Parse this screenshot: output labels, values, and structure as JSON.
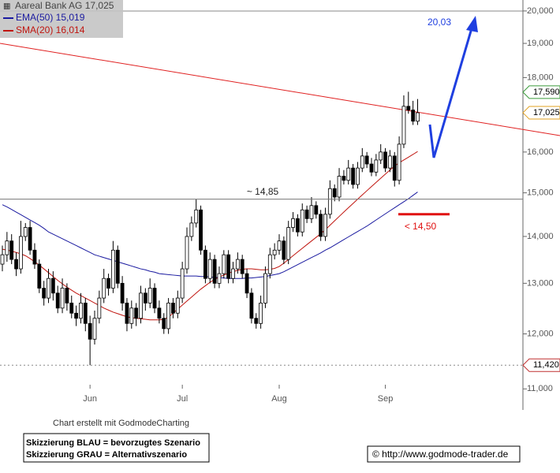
{
  "chart_data": {
    "type": "candlestick",
    "title": "Aareal Bank AG 17,025",
    "log": true,
    "ylim": [
      10.64,
      20.35
    ],
    "yticks": [
      {
        "value": 20,
        "label": "20,000"
      },
      {
        "value": 19,
        "label": "19,000"
      },
      {
        "value": 18,
        "label": "18,000"
      },
      {
        "value": 17,
        "label": "17,000"
      },
      {
        "value": 16,
        "label": "16,000"
      },
      {
        "value": 15,
        "label": "15,000"
      },
      {
        "value": 14,
        "label": "14,000"
      },
      {
        "value": 13,
        "label": "13,000"
      },
      {
        "value": 12,
        "label": "12,000"
      },
      {
        "value": 11,
        "label": "11,000"
      }
    ],
    "categories": [
      null,
      null,
      null,
      null,
      null,
      null,
      null,
      null,
      null,
      null,
      null,
      null,
      null,
      null,
      null,
      null,
      null,
      null,
      null,
      "Jun",
      null,
      null,
      null,
      null,
      null,
      null,
      null,
      null,
      null,
      null,
      null,
      null,
      null,
      null,
      null,
      null,
      null,
      null,
      null,
      "Jul",
      null,
      null,
      null,
      null,
      null,
      null,
      null,
      null,
      null,
      null,
      null,
      null,
      null,
      null,
      null,
      null,
      null,
      null,
      null,
      null,
      "Aug",
      null,
      null,
      null,
      null,
      null,
      null,
      null,
      null,
      null,
      null,
      null,
      null,
      null,
      null,
      null,
      null,
      null,
      null,
      null,
      null,
      null,
      null,
      "Sep",
      null,
      null,
      null,
      null,
      null,
      null,
      null
    ],
    "ohlc": {
      "open": [
        13.4,
        13.6,
        13.9,
        13.5,
        13.3,
        14.0,
        14.2,
        13.7,
        13.4,
        12.9,
        12.7,
        13.1,
        12.8,
        12.5,
        12.9,
        12.6,
        12.4,
        12.3,
        12.6,
        12.2,
        11.9,
        12.3,
        12.7,
        13.1,
        12.9,
        13.7,
        13.0,
        12.6,
        12.2,
        12.5,
        12.3,
        12.8,
        12.6,
        12.9,
        12.5,
        12.3,
        12.1,
        12.6,
        12.4,
        12.7,
        13.3,
        14.0,
        14.3,
        14.6,
        13.7,
        13.1,
        13.5,
        13.0,
        13.2,
        13.6,
        13.1,
        13.3,
        13.5,
        13.2,
        12.8,
        12.3,
        12.2,
        12.6,
        13.2,
        13.6,
        13.7,
        13.9,
        13.5,
        14.2,
        14.4,
        14.1,
        14.6,
        14.4,
        14.7,
        14.5,
        14.0,
        14.5,
        15.1,
        14.9,
        15.4,
        15.3,
        15.6,
        15.2,
        15.6,
        15.9,
        15.7,
        15.5,
        15.8,
        16.0,
        15.6,
        15.9,
        15.3,
        16.2,
        17.2,
        17.1,
        16.8
      ],
      "high": [
        13.8,
        14.1,
        14.05,
        13.65,
        14.35,
        14.3,
        14.35,
        13.85,
        13.5,
        13.05,
        13.3,
        13.25,
        12.95,
        13.1,
        13.0,
        12.75,
        12.55,
        12.8,
        12.7,
        12.35,
        12.45,
        12.85,
        13.3,
        13.2,
        13.9,
        13.8,
        13.15,
        12.7,
        12.65,
        12.6,
        12.95,
        12.9,
        13.1,
        13.0,
        12.65,
        12.4,
        12.7,
        12.7,
        12.85,
        13.45,
        14.2,
        14.45,
        14.85,
        14.7,
        13.8,
        13.65,
        13.6,
        13.35,
        13.7,
        13.7,
        13.45,
        13.65,
        13.6,
        13.3,
        12.9,
        12.4,
        12.75,
        13.35,
        13.75,
        13.85,
        14.05,
        14.0,
        14.35,
        14.55,
        14.5,
        14.75,
        14.7,
        14.9,
        14.8,
        14.6,
        14.65,
        15.3,
        15.2,
        15.6,
        15.55,
        15.8,
        15.7,
        15.75,
        16.1,
        16.0,
        15.85,
        15.95,
        16.2,
        16.1,
        16.05,
        16.0,
        16.4,
        17.5,
        17.6,
        17.35,
        17.4
      ],
      "low": [
        13.25,
        13.45,
        13.4,
        13.15,
        13.2,
        13.9,
        13.6,
        13.3,
        12.8,
        12.55,
        12.6,
        12.65,
        12.4,
        12.4,
        12.45,
        12.3,
        12.15,
        12.2,
        12.05,
        11.42,
        11.8,
        12.2,
        12.6,
        12.75,
        12.8,
        12.9,
        12.45,
        12.05,
        12.1,
        12.15,
        12.2,
        12.45,
        12.5,
        12.4,
        12.2,
        12.0,
        12.0,
        12.3,
        12.3,
        12.6,
        13.2,
        13.9,
        14.2,
        13.6,
        13.0,
        13.0,
        12.9,
        12.9,
        13.1,
        13.0,
        13.0,
        13.2,
        13.1,
        12.7,
        12.2,
        12.1,
        12.1,
        12.5,
        13.1,
        13.5,
        13.6,
        13.4,
        13.4,
        14.1,
        14.0,
        14.0,
        14.3,
        14.3,
        14.4,
        13.9,
        13.9,
        14.4,
        14.8,
        14.8,
        15.2,
        15.2,
        15.1,
        15.1,
        15.5,
        15.6,
        15.4,
        15.4,
        15.7,
        15.5,
        15.5,
        15.15,
        15.2,
        16.1,
        17.0,
        16.7,
        16.7
      ],
      "close": [
        13.6,
        13.9,
        13.5,
        13.3,
        14.0,
        14.2,
        13.7,
        13.4,
        12.9,
        12.7,
        13.1,
        12.8,
        12.5,
        12.9,
        12.6,
        12.4,
        12.3,
        12.6,
        12.2,
        11.9,
        12.3,
        12.7,
        13.1,
        12.9,
        13.7,
        13.0,
        12.6,
        12.2,
        12.5,
        12.3,
        12.8,
        12.6,
        12.9,
        12.5,
        12.3,
        12.1,
        12.6,
        12.4,
        12.7,
        13.3,
        14.0,
        14.3,
        14.6,
        13.7,
        13.1,
        13.5,
        13.0,
        13.2,
        13.6,
        13.1,
        13.3,
        13.5,
        13.2,
        12.8,
        12.3,
        12.2,
        12.6,
        13.2,
        13.6,
        13.7,
        13.9,
        13.5,
        14.2,
        14.4,
        14.1,
        14.6,
        14.4,
        14.7,
        14.5,
        14.0,
        14.5,
        15.1,
        14.9,
        15.4,
        15.3,
        15.6,
        15.2,
        15.6,
        15.9,
        15.7,
        15.5,
        15.8,
        16.0,
        15.6,
        15.9,
        15.3,
        16.2,
        17.2,
        17.1,
        16.8,
        17.025
      ]
    },
    "series": [
      {
        "name": "EMA(50) 15,019",
        "color": "#1a1aa0",
        "values": [
          14.72,
          14.67,
          14.61,
          14.55,
          14.49,
          14.43,
          14.37,
          14.31,
          14.25,
          14.18,
          14.1,
          14.05,
          14.0,
          13.95,
          13.9,
          13.85,
          13.8,
          13.75,
          13.7,
          13.65,
          13.6,
          13.57,
          13.54,
          13.51,
          13.48,
          13.45,
          13.42,
          13.39,
          13.36,
          13.33,
          13.3,
          13.28,
          13.25,
          13.23,
          13.2,
          13.19,
          13.18,
          13.17,
          13.16,
          13.15,
          13.15,
          13.15,
          13.15,
          13.14,
          13.14,
          13.13,
          13.12,
          13.12,
          13.11,
          13.1,
          13.1,
          13.1,
          13.1,
          13.11,
          13.11,
          13.12,
          13.13,
          13.14,
          13.16,
          13.18,
          13.2,
          13.24,
          13.29,
          13.34,
          13.39,
          13.44,
          13.49,
          13.54,
          13.59,
          13.64,
          13.7,
          13.75,
          13.81,
          13.87,
          13.93,
          13.99,
          14.05,
          14.11,
          14.17,
          14.23,
          14.3,
          14.37,
          14.44,
          14.51,
          14.58,
          14.65,
          14.72,
          14.79,
          14.86,
          14.94,
          15.019
        ]
      },
      {
        "name": "SMA(20) 16,014",
        "color": "#c0150f",
        "values": [
          13.72,
          13.7,
          13.68,
          13.65,
          13.62,
          13.58,
          13.52,
          13.45,
          13.38,
          13.3,
          13.22,
          13.14,
          13.06,
          12.99,
          12.92,
          12.86,
          12.8,
          12.75,
          12.7,
          12.65,
          12.6,
          12.55,
          12.5,
          12.46,
          12.42,
          12.39,
          12.36,
          12.33,
          12.31,
          12.3,
          12.29,
          12.28,
          12.27,
          12.27,
          12.27,
          12.28,
          12.32,
          12.4,
          12.48,
          12.56,
          12.64,
          12.72,
          12.8,
          12.88,
          12.95,
          13.02,
          13.08,
          13.13,
          13.17,
          13.21,
          13.24,
          13.27,
          13.29,
          13.3,
          13.3,
          13.29,
          13.28,
          13.28,
          13.29,
          13.31,
          13.35,
          13.42,
          13.5,
          13.58,
          13.66,
          13.74,
          13.82,
          13.9,
          13.98,
          14.06,
          14.15,
          14.25,
          14.35,
          14.45,
          14.55,
          14.65,
          14.75,
          14.85,
          14.95,
          15.05,
          15.15,
          15.25,
          15.35,
          15.45,
          15.55,
          15.65,
          15.73,
          15.8,
          15.87,
          15.94,
          16.014
        ]
      }
    ],
    "annotations": [
      {
        "kind": "hline",
        "value": 14.85,
        "label": "~ 14,85"
      },
      {
        "kind": "dashed",
        "value": 11.42,
        "label": "11,420"
      },
      {
        "kind": "support",
        "value": 14.5,
        "label": "< 14,50"
      },
      {
        "kind": "target",
        "value": 20.03,
        "label": "20,03"
      },
      {
        "kind": "price",
        "value": 17.59,
        "label": "17,590",
        "color": "#3a9a3a"
      },
      {
        "kind": "price",
        "value": 17.025,
        "label": "17,025",
        "color": "#e0a020"
      }
    ],
    "credit": "Chart erstellt mit GodmodeCharting",
    "notes": [
      "Skizzierung BLAU = bevorzugtes Szenario",
      "Skizzierung GRAU = Alternativszenario"
    ],
    "source": "© http://www.godmode-trader.de"
  }
}
